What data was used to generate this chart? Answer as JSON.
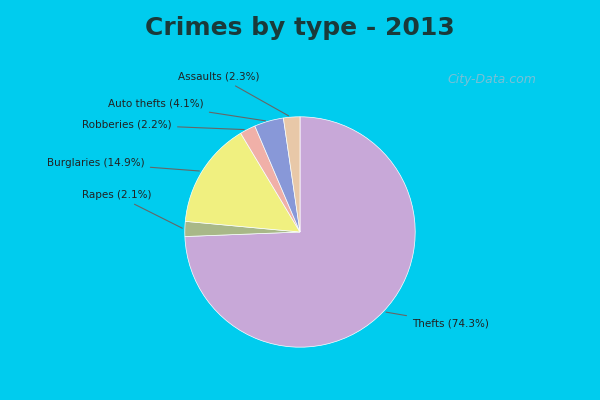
{
  "title": "Crimes by type - 2013",
  "title_fontsize": 18,
  "title_fontweight": "bold",
  "slices": [
    {
      "label": "Thefts",
      "pct": 74.3,
      "color": "#C8A8D8"
    },
    {
      "label": "Rapes",
      "pct": 2.1,
      "color": "#A8B888"
    },
    {
      "label": "Burglaries",
      "pct": 14.9,
      "color": "#F0F080"
    },
    {
      "label": "Robberies",
      "pct": 2.2,
      "color": "#F0B0A8"
    },
    {
      "label": "Auto thefts",
      "pct": 4.1,
      "color": "#8898D8"
    },
    {
      "label": "Assaults",
      "pct": 2.3,
      "color": "#E8C8A8"
    }
  ],
  "background_top": "#00CCEE",
  "background_main": "#C8DCC8",
  "watermark": "City-Data.com",
  "startangle": 90
}
